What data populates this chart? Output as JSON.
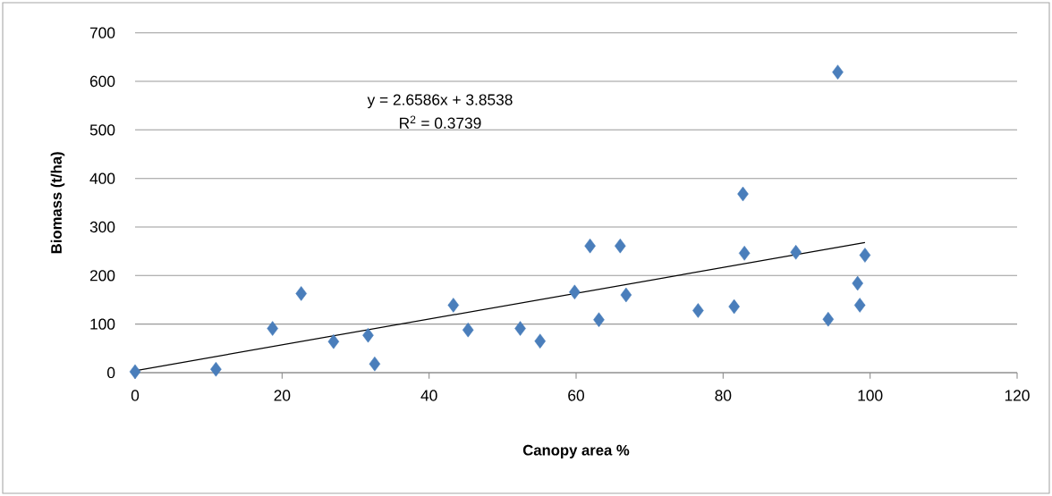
{
  "chart_data": {
    "type": "scatter",
    "xlabel": "Canopy area %",
    "ylabel": "Biomass (t/ha)",
    "xlim": [
      0,
      120
    ],
    "xticks": [
      0,
      20,
      40,
      60,
      80,
      100,
      120
    ],
    "ylim": [
      0,
      700
    ],
    "yticks": [
      0,
      100,
      200,
      300,
      400,
      500,
      600,
      700
    ],
    "grid": "y",
    "marker": "diamond",
    "annotations": [
      "y = 2.6586x + 3.8538",
      "R$^{2}$ = 0.3739"
    ],
    "series": [
      {
        "color": "#4a7ebb",
        "x": [
          0,
          11.0,
          18.7,
          22.6,
          27.0,
          31.7,
          32.6,
          43.3,
          45.3,
          52.4,
          55.1,
          59.8,
          61.9,
          63.1,
          66.0,
          66.8,
          76.6,
          81.5,
          82.7,
          82.9,
          89.9,
          95.6,
          94.3,
          98.3,
          98.6,
          99.3
        ],
        "values": [
          2,
          7,
          91,
          163,
          64,
          77,
          18,
          139,
          88,
          91,
          65,
          166,
          261,
          109,
          261,
          160,
          128,
          136,
          368,
          246,
          248,
          619,
          110,
          184,
          139,
          242
        ]
      },
      {
        "type": "line",
        "marker": "none",
        "color": "#000000",
        "x": [
          0,
          99.3
        ],
        "values": [
          4,
          268
        ]
      }
    ]
  }
}
